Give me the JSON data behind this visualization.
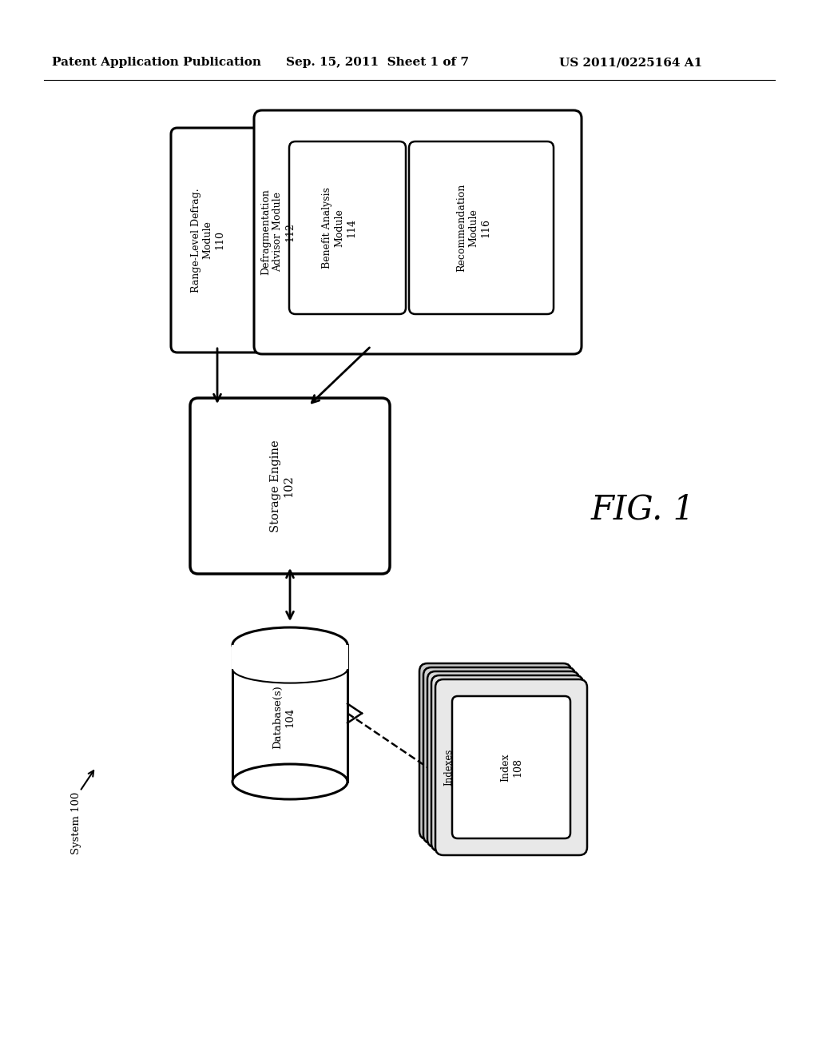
{
  "bg_color": "#ffffff",
  "header_left": "Patent Application Publication",
  "header_mid": "Sep. 15, 2011  Sheet 1 of 7",
  "header_right": "US 2011/0225164 A1",
  "fig_label": "FIG. 1",
  "system_label": "System 100"
}
